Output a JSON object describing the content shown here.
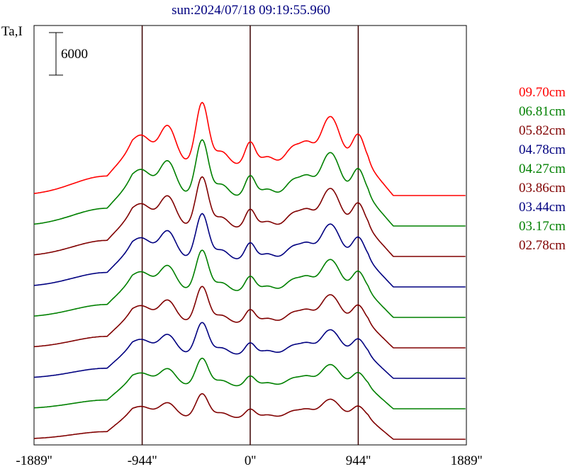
{
  "chart_data": {
    "type": "line",
    "title": "sun:2024/07/18 09:19:55.960",
    "ylabel": "Ta,I",
    "scale_bar_label": "6000",
    "xlim": [
      -1889,
      1889
    ],
    "x_ticks": [
      {
        "value": -1889,
        "label": "-1889''"
      },
      {
        "value": -944,
        "label": "-944''"
      },
      {
        "value": 0,
        "label": "0''"
      },
      {
        "value": 944,
        "label": "944''"
      },
      {
        "value": 1889,
        "label": "1889''"
      }
    ],
    "vertical_lines": [
      -944,
      0,
      944
    ],
    "grid": false,
    "legend_position": "right",
    "series": [
      {
        "name": "09.70cm",
        "color": "#ff0000",
        "baseline_offset": 9
      },
      {
        "name": "06.81cm",
        "color": "#008000",
        "baseline_offset": 8
      },
      {
        "name": "05.82cm",
        "color": "#800000",
        "baseline_offset": 7
      },
      {
        "name": "04.78cm",
        "color": "#000080",
        "baseline_offset": 6
      },
      {
        "name": "04.27cm",
        "color": "#008000",
        "baseline_offset": 5
      },
      {
        "name": "03.86cm",
        "color": "#800000",
        "baseline_offset": 4
      },
      {
        "name": "03.44cm",
        "color": "#000080",
        "baseline_offset": 3
      },
      {
        "name": "03.17cm",
        "color": "#008000",
        "baseline_offset": 2
      },
      {
        "name": "02.78cm",
        "color": "#800000",
        "baseline_offset": 1
      }
    ]
  }
}
